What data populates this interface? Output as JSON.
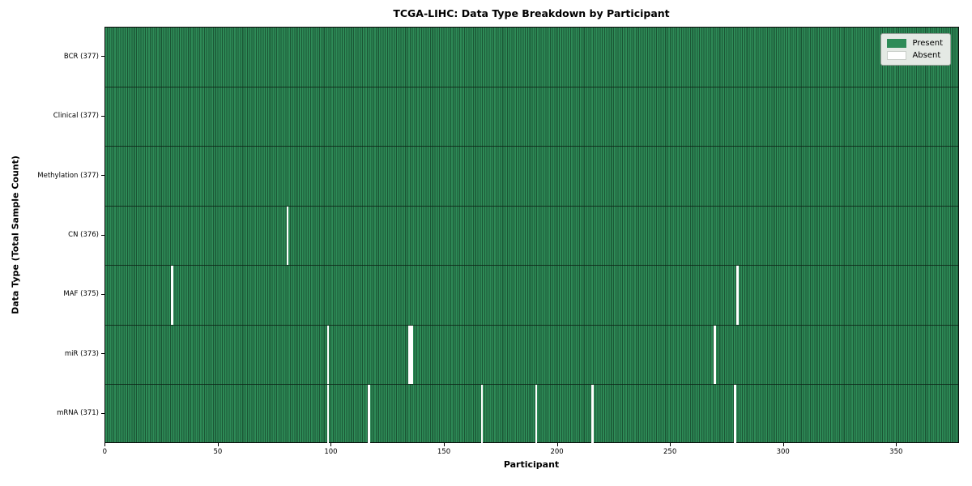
{
  "chart_data": {
    "type": "heatmap",
    "title": "TCGA-LIHC: Data Type Breakdown by Participant",
    "xlabel": "Participant",
    "ylabel": "Data Type (Total Sample Count)",
    "n_participants": 377,
    "x_ticks": [
      0,
      50,
      100,
      150,
      200,
      250,
      300,
      350
    ],
    "rows": [
      {
        "label": "BCR (377)",
        "data_type": "BCR",
        "present_count": 377,
        "absent_participants": []
      },
      {
        "label": "Clinical (377)",
        "data_type": "Clinical",
        "present_count": 377,
        "absent_participants": []
      },
      {
        "label": "Methylation (377)",
        "data_type": "Methylation",
        "present_count": 377,
        "absent_participants": []
      },
      {
        "label": "CN (376)",
        "data_type": "CN",
        "present_count": 376,
        "absent_participants": [
          80
        ]
      },
      {
        "label": "MAF (375)",
        "data_type": "MAF",
        "present_count": 375,
        "absent_participants": [
          29,
          279
        ]
      },
      {
        "label": "miR (373)",
        "data_type": "miR",
        "present_count": 373,
        "absent_participants": [
          98,
          134,
          135,
          269
        ]
      },
      {
        "label": "mRNA (371)",
        "data_type": "mRNA",
        "present_count": 371,
        "absent_participants": [
          98,
          116,
          166,
          190,
          215,
          278
        ]
      }
    ],
    "legend": {
      "position": "upper right",
      "entries": [
        {
          "label": "Present",
          "color": "#2e8b57"
        },
        {
          "label": "Absent",
          "color": "#ffffff"
        }
      ]
    },
    "colors": {
      "present": "#2e8b57",
      "cell_edge": "#1b5635",
      "row_separator": "#0d2416",
      "absent": "#ffffff"
    },
    "layout": {
      "grid": "cell-edges",
      "legend_position": "upper-right"
    }
  }
}
